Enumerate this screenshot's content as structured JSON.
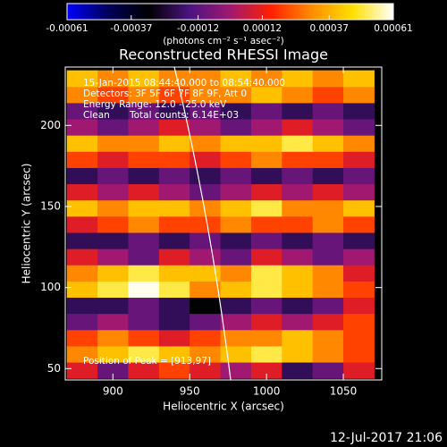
{
  "chart_data": {
    "type": "heatmap",
    "title": "Reconstructed RHESSI Image",
    "xlabel": "Heliocentric X (arcsec)",
    "ylabel": "Heliocentric Y (arcsec)",
    "colorbar_label": "(photons cm⁻² s⁻¹ asec⁻²)",
    "colorbar_lim": [
      -0.00061,
      0.00061
    ],
    "colorbar_ticks": [
      -0.00061,
      -0.00037,
      -0.00012,
      0.00012,
      0.00037,
      0.00061
    ],
    "colorscale": [
      "#0000ff",
      "#00005a",
      "#000000",
      "#4a1480",
      "#a01870",
      "#ff2000",
      "#ff8c00",
      "#ffe000",
      "#ffffff"
    ],
    "annotations": [
      "15-Jan-2015 08:44:40.000 to 08:54:40.000",
      "Detectors: 3F 5F 6F 7F 8F 9F, Att 0",
      "Energy Range: 12.0 - 25.0 keV",
      "Clean",
      "Total counts: 6.14E+03",
      "Position of Peak = [913,97]"
    ],
    "footer": "12-Jul-2017 21:06",
    "xlim": [
      869,
      1075
    ],
    "ylim": [
      43,
      236
    ],
    "xticks": [
      900,
      950,
      1000,
      1050
    ],
    "yticks": [
      50,
      100,
      150,
      200
    ],
    "xbins": [
      870,
      890,
      910,
      930,
      950,
      970,
      990,
      1010,
      1030,
      1050,
      1070
    ],
    "ybins": [
      44,
      54,
      64,
      74,
      84,
      94,
      104,
      114,
      124,
      134,
      144,
      154,
      164,
      174,
      184,
      194,
      204,
      214,
      224,
      234
    ],
    "z": [
      [
        0.0001,
        -0.0001,
        0.0001,
        0.0002,
        0.0001,
        0.0,
        0.0001,
        -0.0002,
        -0.0001,
        0.0001
      ],
      [
        0.0003,
        0.0004,
        0.0005,
        0.0004,
        0.0003,
        0.0004,
        0.0005,
        0.0004,
        0.0003,
        0.0002
      ],
      [
        0.0002,
        0.0003,
        0.0002,
        0.0001,
        0.0002,
        0.0003,
        0.0003,
        0.0004,
        0.0003,
        0.0002
      ],
      [
        -0.0001,
        0.0,
        -0.0001,
        -0.0002,
        -0.0001,
        0.0,
        0.0001,
        0.0,
        0.0001,
        0.0002
      ],
      [
        -0.0002,
        -0.0002,
        -0.0001,
        -0.0002,
        -0.0003,
        -0.0002,
        -0.0001,
        -0.0002,
        -0.0001,
        0.0001
      ],
      [
        0.0004,
        0.0005,
        0.0006,
        0.0005,
        0.0003,
        0.0004,
        0.0005,
        0.0004,
        0.0003,
        0.0002
      ],
      [
        0.0003,
        0.0004,
        0.0005,
        0.0004,
        0.0004,
        0.0003,
        0.0005,
        0.0004,
        0.0003,
        0.0001
      ],
      [
        0.0001,
        0.0,
        -0.0001,
        0.0001,
        0.0,
        -0.0001,
        0.0001,
        0.0,
        -0.0001,
        0.0
      ],
      [
        -0.0002,
        -0.0002,
        -0.0001,
        -0.0002,
        -0.0001,
        -0.0002,
        -0.0001,
        -0.0002,
        -0.0001,
        -0.0002
      ],
      [
        0.0001,
        0.0002,
        0.0003,
        0.0002,
        0.0002,
        0.0003,
        0.0002,
        0.0002,
        0.0003,
        0.0002
      ],
      [
        0.0004,
        0.0003,
        0.0004,
        0.0004,
        0.0003,
        0.0004,
        0.0005,
        0.0003,
        0.0003,
        0.0004
      ],
      [
        0.0001,
        0.0,
        0.0001,
        0.0,
        -0.0001,
        0.0,
        0.0001,
        0.0,
        0.0001,
        0.0
      ],
      [
        -0.0002,
        -0.0001,
        -0.0002,
        -0.0001,
        -0.0002,
        -0.0001,
        -0.0002,
        -0.0001,
        -0.0002,
        -0.0001
      ],
      [
        0.0002,
        0.0001,
        0.0002,
        0.0002,
        0.0001,
        0.0002,
        0.0003,
        0.0002,
        0.0002,
        0.0001
      ],
      [
        0.0004,
        0.0003,
        0.0003,
        0.0004,
        0.0003,
        0.0004,
        0.0004,
        0.0005,
        0.0004,
        0.0003
      ],
      [
        0.0,
        -0.0001,
        0.0,
        0.0001,
        0.0,
        -0.0001,
        0.0,
        0.0001,
        0.0,
        -0.0001
      ],
      [
        -0.0001,
        -0.0002,
        -0.0001,
        -0.0002,
        -0.0001,
        -0.0002,
        -0.0001,
        -0.0002,
        -0.0001,
        -0.0002
      ],
      [
        0.0003,
        0.0002,
        0.0003,
        0.0002,
        0.0003,
        0.0003,
        0.0004,
        0.0003,
        0.0002,
        0.0003
      ],
      [
        0.0004,
        0.0003,
        0.0004,
        0.0003,
        0.0003,
        0.0004,
        0.0003,
        0.0004,
        0.0003,
        0.0004
      ]
    ]
  }
}
